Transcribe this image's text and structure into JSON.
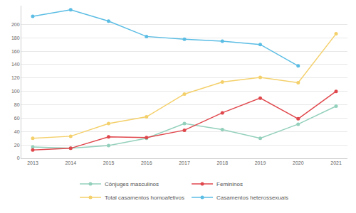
{
  "chart_data": {
    "type": "line",
    "x": [
      2013,
      2014,
      2015,
      2016,
      2017,
      2018,
      2019,
      2020,
      2021
    ],
    "series": [
      {
        "name": "Cônjuges masculinos",
        "color": "#93d0bb",
        "values": [
          17,
          15,
          19,
          30,
          52,
          43,
          30,
          51,
          78
        ]
      },
      {
        "name": "Femininos",
        "color": "#e0474c",
        "values": [
          12.5,
          15,
          32,
          31,
          42,
          68,
          90,
          59,
          100
        ]
      },
      {
        "name": "Total casamentos homoafetivos",
        "color": "#f4d06b",
        "values": [
          30,
          33,
          52,
          62,
          96,
          114,
          121,
          113,
          186
        ]
      },
      {
        "name": "Casamentos heterossexuais",
        "color": "#5bbde4",
        "values": [
          212,
          222,
          205,
          182,
          178,
          175,
          170,
          138,
          null
        ]
      }
    ],
    "xlim": [
      2012.7,
      2021.3
    ],
    "xticks": [
      2013,
      2014,
      2015,
      2016,
      2017,
      2018,
      2019,
      2020,
      2021
    ],
    "ylim": [
      0,
      228
    ],
    "yticks": [
      0,
      20,
      40,
      60,
      80,
      100,
      120,
      140,
      160,
      180,
      200
    ],
    "grid": true,
    "legend": "bottom",
    "marker": "circle"
  }
}
